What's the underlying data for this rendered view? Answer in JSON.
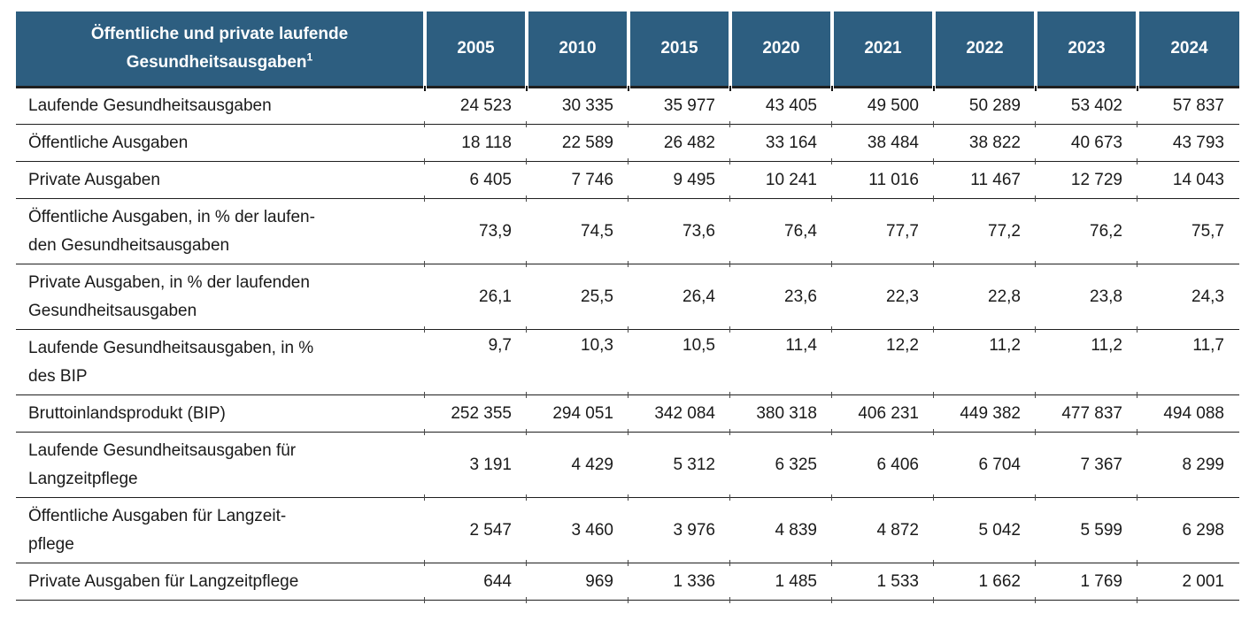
{
  "colors": {
    "header_bg": "#2d5e80",
    "header_text": "#ffffff",
    "body_text": "#1a1a1a",
    "rule": "#1f1f1f"
  },
  "chart_data": {
    "type": "table",
    "title": "Öffentliche und private laufende Gesundheitsausgaben",
    "title_display": "Öffentliche und private laufende\nGesundheitsausgaben",
    "footnote_marker": "1",
    "columns": [
      "2005",
      "2010",
      "2015",
      "2020",
      "2021",
      "2022",
      "2023",
      "2024"
    ],
    "rows": [
      {
        "label": "Laufende Gesundheitsausgaben",
        "values": [
          "24 523",
          "30 335",
          "35 977",
          "43 405",
          "49 500",
          "50 289",
          "53 402",
          "57 837"
        ]
      },
      {
        "label": "Öffentliche Ausgaben",
        "values": [
          "18 118",
          "22 589",
          "26 482",
          "33 164",
          "38 484",
          "38 822",
          "40 673",
          "43 793"
        ]
      },
      {
        "label": "Private Ausgaben",
        "values": [
          "6 405",
          "7 746",
          "9 495",
          "10 241",
          "11 016",
          "11 467",
          "12 729",
          "14 043"
        ]
      },
      {
        "label": "Öffentliche Ausgaben, in % der laufen-\nden Gesundheitsausgaben",
        "values": [
          "73,9",
          "74,5",
          "73,6",
          "76,4",
          "77,7",
          "77,2",
          "76,2",
          "75,7"
        ]
      },
      {
        "label": "Private Ausgaben, in % der laufenden\nGesundheitsausgaben",
        "values": [
          "26,1",
          "25,5",
          "26,4",
          "23,6",
          "22,3",
          "22,8",
          "23,8",
          "24,3"
        ]
      },
      {
        "label": "Laufende Gesundheitsausgaben, in %\ndes BIP",
        "values": [
          "9,7",
          "10,3",
          "10,5",
          "11,4",
          "12,2",
          "11,2",
          "11,2",
          "11,7"
        ]
      },
      {
        "label": "Bruttoinlandsprodukt (BIP)",
        "values": [
          "252 355",
          "294 051",
          "342 084",
          "380 318",
          "406 231",
          "449 382",
          "477 837",
          "494 088"
        ]
      },
      {
        "label": "Laufende Gesundheitsausgaben für\nLangzeitpflege",
        "values": [
          "3 191",
          "4 429",
          "5 312",
          "6 325",
          "6 406",
          "6 704",
          "7 367",
          "8 299"
        ]
      },
      {
        "label": "Öffentliche Ausgaben für Langzeit-\npflege",
        "values": [
          "2 547",
          "3 460",
          "3 976",
          "4 839",
          "4 872",
          "5 042",
          "5 599",
          "6 298"
        ]
      },
      {
        "label": "Private Ausgaben für Langzeitpflege",
        "values": [
          "644",
          "969",
          "1 336",
          "1 485",
          "1 533",
          "1 662",
          "1 769",
          "2 001"
        ]
      }
    ]
  }
}
